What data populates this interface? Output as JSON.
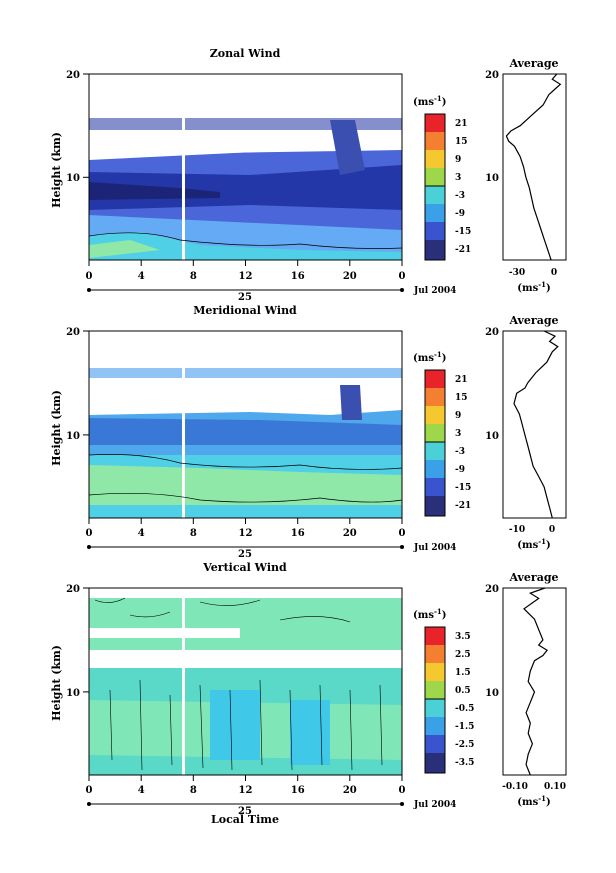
{
  "chart_data": [
    {
      "type": "heatmap",
      "title": "Zonal Wind",
      "ylabel": "Height (km)",
      "xticks": [
        "0",
        "4",
        "8",
        "12",
        "16",
        "20",
        "0"
      ],
      "yticks": [
        "20",
        "10"
      ],
      "xlim": [
        0,
        24
      ],
      "ylim": [
        2,
        20
      ],
      "day_label": "25",
      "date_label": "Jul 2004",
      "colorbar": {
        "unit_base": "(ms",
        "unit_exp": "-1",
        "unit_close": ")",
        "ticks": [
          "21",
          "15",
          "9",
          "3",
          "-3",
          "-9",
          "-15",
          "-21"
        ],
        "range": [
          -24,
          24
        ]
      },
      "profile": {
        "title": "Average",
        "xlabel_base": "(ms",
        "xlabel_exp": "-1",
        "xlabel_close": ")",
        "xticks": [
          "-30",
          "0"
        ],
        "xlim": [
          -45,
          10
        ],
        "yticks": [
          "20",
          "10"
        ],
        "height": [
          2,
          3,
          4,
          5,
          6,
          7,
          8,
          9,
          10,
          11,
          12,
          13,
          13.5,
          14,
          14.5,
          15,
          16,
          17,
          18,
          18.5,
          19,
          19.5,
          20
        ],
        "speed": [
          -3,
          -6,
          -9,
          -12,
          -15,
          -18,
          -20,
          -22,
          -25,
          -27,
          -30,
          -35,
          -40,
          -42,
          -38,
          -30,
          -20,
          -10,
          -5,
          0,
          5,
          -2,
          2
        ]
      }
    },
    {
      "type": "heatmap",
      "title": "Meridional Wind",
      "ylabel": "Height (km)",
      "xticks": [
        "0",
        "4",
        "8",
        "12",
        "16",
        "20",
        "0"
      ],
      "yticks": [
        "20",
        "10"
      ],
      "xlim": [
        0,
        24
      ],
      "ylim": [
        2,
        20
      ],
      "day_label": "25",
      "date_label": "Jul 2004",
      "colorbar": {
        "unit_base": "(ms",
        "unit_exp": "-1",
        "unit_close": ")",
        "ticks": [
          "21",
          "15",
          "9",
          "3",
          "-3",
          "-9",
          "-15",
          "-21"
        ],
        "range": [
          -24,
          24
        ]
      },
      "profile": {
        "title": "Average",
        "xlabel_base": "(ms",
        "xlabel_exp": "-1",
        "xlabel_close": ")",
        "xticks": [
          "-10",
          "0"
        ],
        "xlim": [
          -18,
          5
        ],
        "yticks": [
          "20",
          "10"
        ],
        "height": [
          2,
          3,
          4,
          5,
          6,
          7,
          8,
          9,
          10,
          11,
          12,
          13,
          14,
          14.5,
          15,
          16,
          17,
          18,
          18.5,
          19,
          19.5,
          20
        ],
        "speed": [
          0,
          -1,
          -2,
          -3,
          -5,
          -7,
          -8,
          -9,
          -10,
          -11,
          -12,
          -14,
          -13,
          -10,
          -9,
          -6,
          -2,
          0,
          2,
          -1,
          1,
          -3
        ]
      }
    },
    {
      "type": "heatmap",
      "title": "Vertical Wind",
      "ylabel": "Height (km)",
      "xlabel": "Local Time",
      "xticks": [
        "0",
        "4",
        "8",
        "12",
        "16",
        "20",
        "0"
      ],
      "yticks": [
        "20",
        "10"
      ],
      "xlim": [
        0,
        24
      ],
      "ylim": [
        2,
        20
      ],
      "day_label": "25",
      "date_label": "Jul 2004",
      "colorbar": {
        "unit_base": "(ms",
        "unit_exp": "-1",
        "unit_close": ")",
        "ticks": [
          "3.5",
          "2.5",
          "1.5",
          "0.5",
          "-0.5",
          "-1.5",
          "-2.5",
          "-3.5"
        ],
        "range": [
          -4,
          4
        ]
      },
      "profile": {
        "title": "Average",
        "xlabel_base": "(ms",
        "xlabel_exp": "-1",
        "xlabel_close": ")",
        "xticks": [
          "-0.10",
          "0.10"
        ],
        "xlim": [
          -0.15,
          0.15
        ],
        "yticks": [
          "20",
          "10"
        ],
        "height": [
          2,
          3,
          4,
          5,
          6,
          7,
          8,
          9,
          10,
          11,
          12,
          13,
          13.5,
          14,
          14.5,
          15,
          16,
          17,
          18,
          19,
          19.5,
          20
        ],
        "speed": [
          -0.02,
          -0.04,
          -0.03,
          -0.01,
          -0.03,
          -0.02,
          -0.04,
          -0.02,
          0.0,
          -0.03,
          -0.02,
          0.0,
          0.04,
          0.06,
          0.02,
          0.04,
          0.02,
          0.0,
          -0.05,
          0.02,
          -0.02,
          0.05
        ]
      }
    }
  ]
}
